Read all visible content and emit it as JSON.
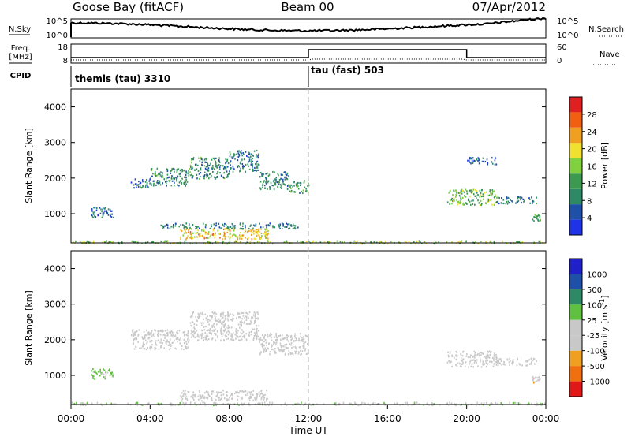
{
  "header": {
    "station": "Goose Bay (fitACF)",
    "beam": "Beam 00",
    "date": "07/Apr/2012"
  },
  "noise_panel": {
    "left_label": "N.Sky",
    "left_ticks": [
      "10^5",
      "10^0"
    ],
    "right_label": "N.Search",
    "right_ticks": [
      "10^5",
      "10^0"
    ]
  },
  "freq_panel": {
    "left_label_1": "Freq.",
    "left_label_2": "[MHz]",
    "left_ticks": [
      "18",
      "8"
    ],
    "right_label": "Nave",
    "right_ticks": [
      "60",
      "0"
    ]
  },
  "cpid_panel": {
    "label": "CPID",
    "segments": [
      {
        "text": "themis (tau) 3310",
        "start_hour": 0
      },
      {
        "text": "tau (fast) 503",
        "start_hour": 12
      }
    ]
  },
  "x_axis": {
    "label": "Time UT",
    "tick_labels": [
      "00:00",
      "04:00",
      "08:00",
      "12:00",
      "16:00",
      "20:00",
      "00:00"
    ],
    "range_hours": [
      0,
      24
    ]
  },
  "colors": {
    "power": [
      "#1e32e6",
      "#1e50a8",
      "#2e8a66",
      "#3c9a50",
      "#80d040",
      "#f0e030",
      "#f0a020",
      "#f06010",
      "#e02020"
    ],
    "velocity": [
      "#e01818",
      "#f07010",
      "#f0a020",
      "#c8c8c8",
      "#c8c8c8",
      "#60c040",
      "#2e8a66",
      "#1e50a8",
      "#2020c8"
    ],
    "ground_scatter": "#c8c8c8"
  },
  "chart_data": [
    {
      "type": "heatmap",
      "name": "power",
      "ylabel": "Slant Range [km]",
      "y_tick_labels": [
        "1000",
        "2000",
        "3000",
        "4000"
      ],
      "ylim": [
        180,
        4500
      ],
      "xlim": [
        0,
        24
      ],
      "colorbar": {
        "label": "Power [dB]",
        "tick_labels": [
          "4",
          "8",
          "12",
          "16",
          "20",
          "24",
          "28"
        ],
        "range": [
          0,
          32
        ]
      },
      "regions": [
        {
          "t0": 1.0,
          "t1": 2.2,
          "r0": 900,
          "r1": 1200,
          "level": 5
        },
        {
          "t0": 3.0,
          "t1": 4.0,
          "r0": 1750,
          "r1": 2000,
          "level": 6
        },
        {
          "t0": 4.0,
          "t1": 6.0,
          "r0": 1800,
          "r1": 2300,
          "level": 9
        },
        {
          "t0": 6.0,
          "t1": 8.0,
          "r0": 2000,
          "r1": 2600,
          "level": 9
        },
        {
          "t0": 8.0,
          "t1": 9.5,
          "r0": 2200,
          "r1": 2800,
          "level": 7
        },
        {
          "t0": 9.5,
          "t1": 11.0,
          "r0": 1700,
          "r1": 2200,
          "level": 8
        },
        {
          "t0": 11.0,
          "t1": 12.0,
          "r0": 1600,
          "r1": 1950,
          "level": 11
        },
        {
          "t0": 5.5,
          "t1": 10.0,
          "r0": 300,
          "r1": 600,
          "level": 21
        },
        {
          "t0": 4.5,
          "t1": 11.5,
          "r0": 600,
          "r1": 750,
          "level": 7
        },
        {
          "t0": 19.0,
          "t1": 21.5,
          "r0": 1250,
          "r1": 1700,
          "level": 14
        },
        {
          "t0": 21.5,
          "t1": 23.5,
          "r0": 1300,
          "r1": 1500,
          "level": 6
        },
        {
          "t0": 23.3,
          "t1": 23.7,
          "r0": 800,
          "r1": 1000,
          "level": 12
        },
        {
          "t0": 20.0,
          "t1": 21.5,
          "r0": 2400,
          "r1": 2600,
          "level": 4
        },
        {
          "t0": 0.0,
          "t1": 24.0,
          "r0": 180,
          "r1": 260,
          "level": 16
        }
      ]
    },
    {
      "type": "heatmap",
      "name": "velocity",
      "ylabel": "Slant Range [km]",
      "y_tick_labels": [
        "1000",
        "2000",
        "3000",
        "4000"
      ],
      "ylim": [
        180,
        4500
      ],
      "xlim": [
        0,
        24
      ],
      "colorbar": {
        "label": "Velocity [m s^-1]",
        "tick_labels": [
          "1000",
          "500",
          "100",
          "25",
          "-25",
          "-100",
          "-500",
          "-1000"
        ],
        "range": [
          -1200,
          1200
        ]
      },
      "regions": [
        {
          "t0": 1.0,
          "t1": 2.2,
          "r0": 900,
          "r1": 1200,
          "v": 200
        },
        {
          "t0": 3.0,
          "t1": 6.0,
          "r0": 1750,
          "r1": 2300,
          "v": 0
        },
        {
          "t0": 6.0,
          "t1": 9.5,
          "r0": 2000,
          "r1": 2800,
          "v": 0
        },
        {
          "t0": 9.5,
          "t1": 12.0,
          "r0": 1600,
          "r1": 2200,
          "v": 0
        },
        {
          "t0": 5.5,
          "t1": 10.0,
          "r0": 300,
          "r1": 600,
          "v": -300
        },
        {
          "t0": 19.0,
          "t1": 21.5,
          "r0": 1250,
          "r1": 1700,
          "v": 0
        },
        {
          "t0": 21.5,
          "t1": 23.5,
          "r0": 1300,
          "r1": 1500,
          "v": 0
        },
        {
          "t0": 23.3,
          "t1": 23.7,
          "r0": 800,
          "r1": 1000,
          "v": -400
        },
        {
          "t0": 0.0,
          "t1": 24.0,
          "r0": 180,
          "r1": 260,
          "v": 50
        }
      ]
    }
  ]
}
